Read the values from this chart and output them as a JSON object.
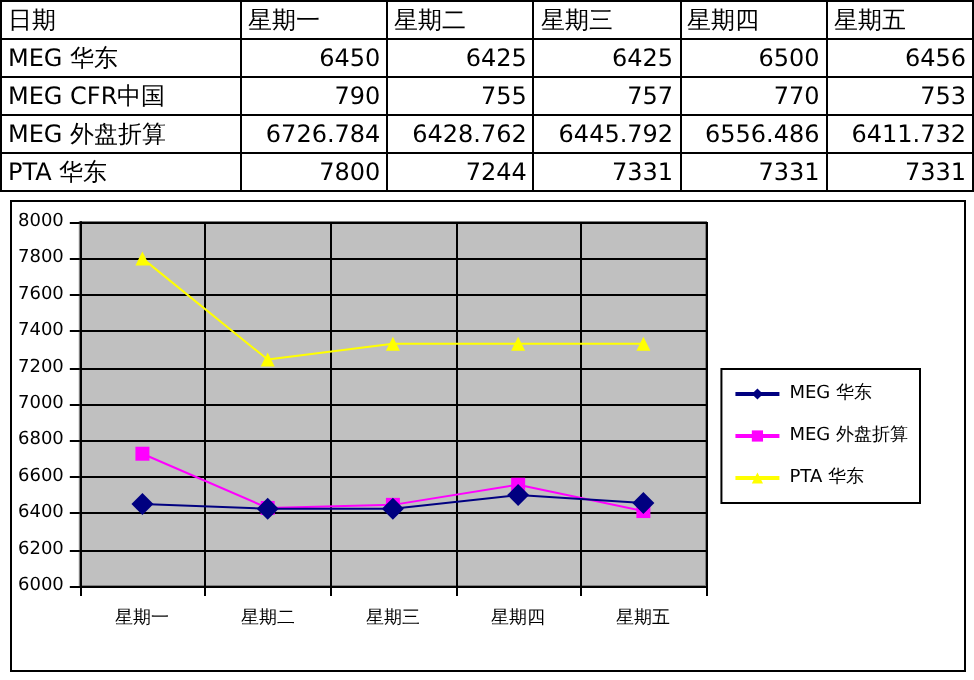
{
  "chart_data": [
    {
      "type": "other",
      "title": "日期",
      "categories": [
        "星期一",
        "星期二",
        "星期三",
        "星期四",
        "星期五"
      ],
      "data_labels": true,
      "series": [
        {
          "name": "MEG 华东",
          "values": [
            6450,
            6425,
            6425,
            6500,
            6456
          ]
        },
        {
          "name": "MEG CFR中国",
          "values": [
            790,
            755,
            757,
            770,
            753
          ]
        },
        {
          "name": "MEG 外盘折算",
          "values": [
            6726.784,
            6428.762,
            6445.792,
            6556.486,
            6411.732
          ]
        },
        {
          "name": "PTA 华东",
          "values": [
            7800,
            7244,
            7331,
            7331,
            7331
          ]
        }
      ]
    },
    {
      "type": "line",
      "categories": [
        "星期一",
        "星期二",
        "星期三",
        "星期四",
        "星期五"
      ],
      "ylim": [
        6000,
        8000
      ],
      "yticks": [
        6000,
        6200,
        6400,
        6600,
        6800,
        7000,
        7200,
        7400,
        7600,
        7800,
        8000
      ],
      "grid": true,
      "legend": "right",
      "series": [
        {
          "name": "MEG 华东",
          "color": "#000080",
          "marker": "diamond",
          "values": [
            6450,
            6425,
            6425,
            6500,
            6456
          ]
        },
        {
          "name": "MEG 外盘折算",
          "color": "#ff00ff",
          "marker": "square",
          "values": [
            6726.784,
            6428.762,
            6445.792,
            6556.486,
            6411.732
          ]
        },
        {
          "name": "PTA 华东",
          "color": "#ffff00",
          "marker": "triangle",
          "values": [
            7800,
            7244,
            7331,
            7331,
            7331
          ]
        }
      ]
    }
  ]
}
